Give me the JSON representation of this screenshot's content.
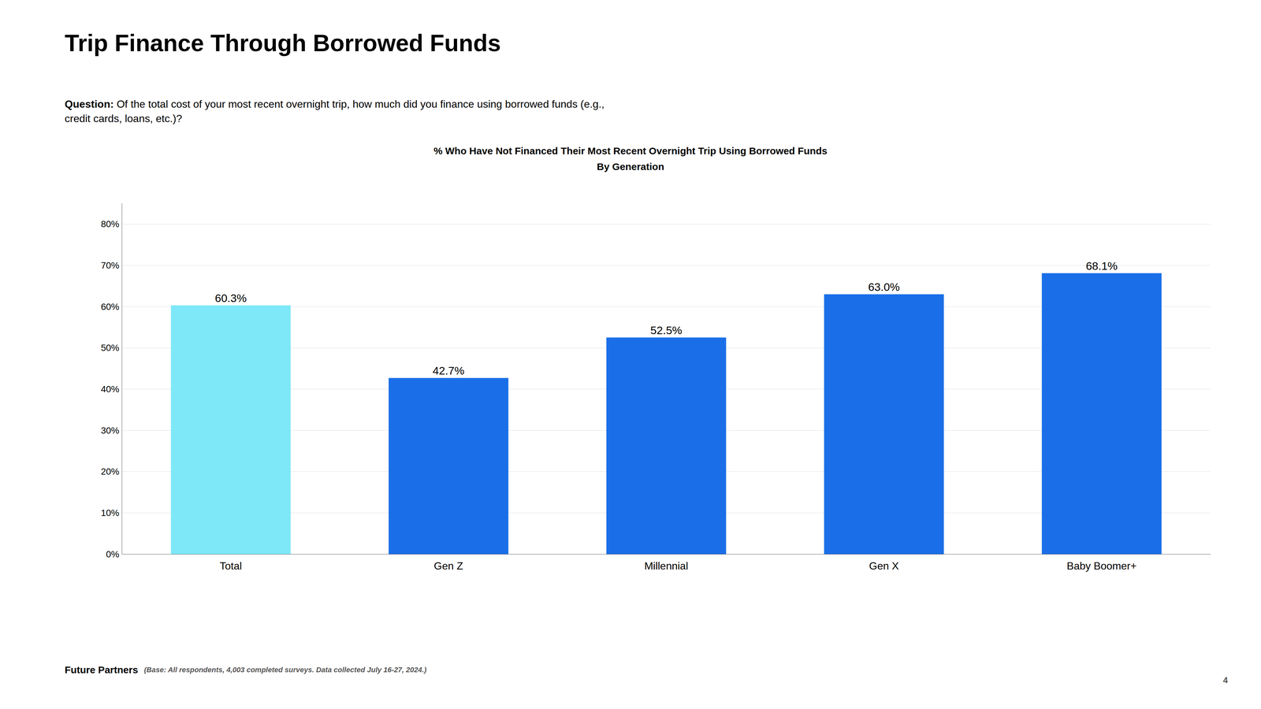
{
  "chart_data": {
    "type": "bar",
    "title": "Trip Finance Through Borrowed Funds",
    "subtitle": [
      "% Who Have Not Financed Their Most Recent Overnight Trip Using Borrowed Funds",
      "By Generation"
    ],
    "annotations": [
      {
        "bold": "Question:",
        "text": " Of the total cost of your most recent overnight trip, how much did you finance using borrowed funds (e.g.,\ncredit cards, loans, etc.)?"
      },
      {
        "bold": "Future Partners",
        "text": "   (Base: All respondents, 4,003 completed surveys. Data collected July 16-27, 2024.)"
      },
      {
        "text": "4"
      }
    ],
    "categories": [
      "Total",
      "Gen Z",
      "Millennial",
      "Gen X",
      "Baby Boomer+"
    ],
    "values": [
      60.3,
      42.7,
      52.5,
      63.0,
      68.1
    ],
    "value_labels": [
      "60.3%",
      "42.7%",
      "52.5%",
      "63.0%",
      "68.1%"
    ],
    "colors": [
      "#7EE8F8",
      "#1A6FE8",
      "#1A6FE8",
      "#1A6FE8",
      "#1A6FE8"
    ],
    "ylim": [
      0,
      85
    ],
    "yticks": [
      {
        "value": 0,
        "label": "0%"
      },
      {
        "value": 10,
        "label": "10%"
      },
      {
        "value": 20,
        "label": "20%"
      },
      {
        "value": 30,
        "label": "30%"
      },
      {
        "value": 40,
        "label": "40%"
      },
      {
        "value": 50,
        "label": "50%"
      },
      {
        "value": 60,
        "label": "60%"
      },
      {
        "value": 70,
        "label": "70%"
      },
      {
        "value": 80,
        "label": "80%"
      }
    ],
    "grid": true,
    "data_labels": true
  }
}
